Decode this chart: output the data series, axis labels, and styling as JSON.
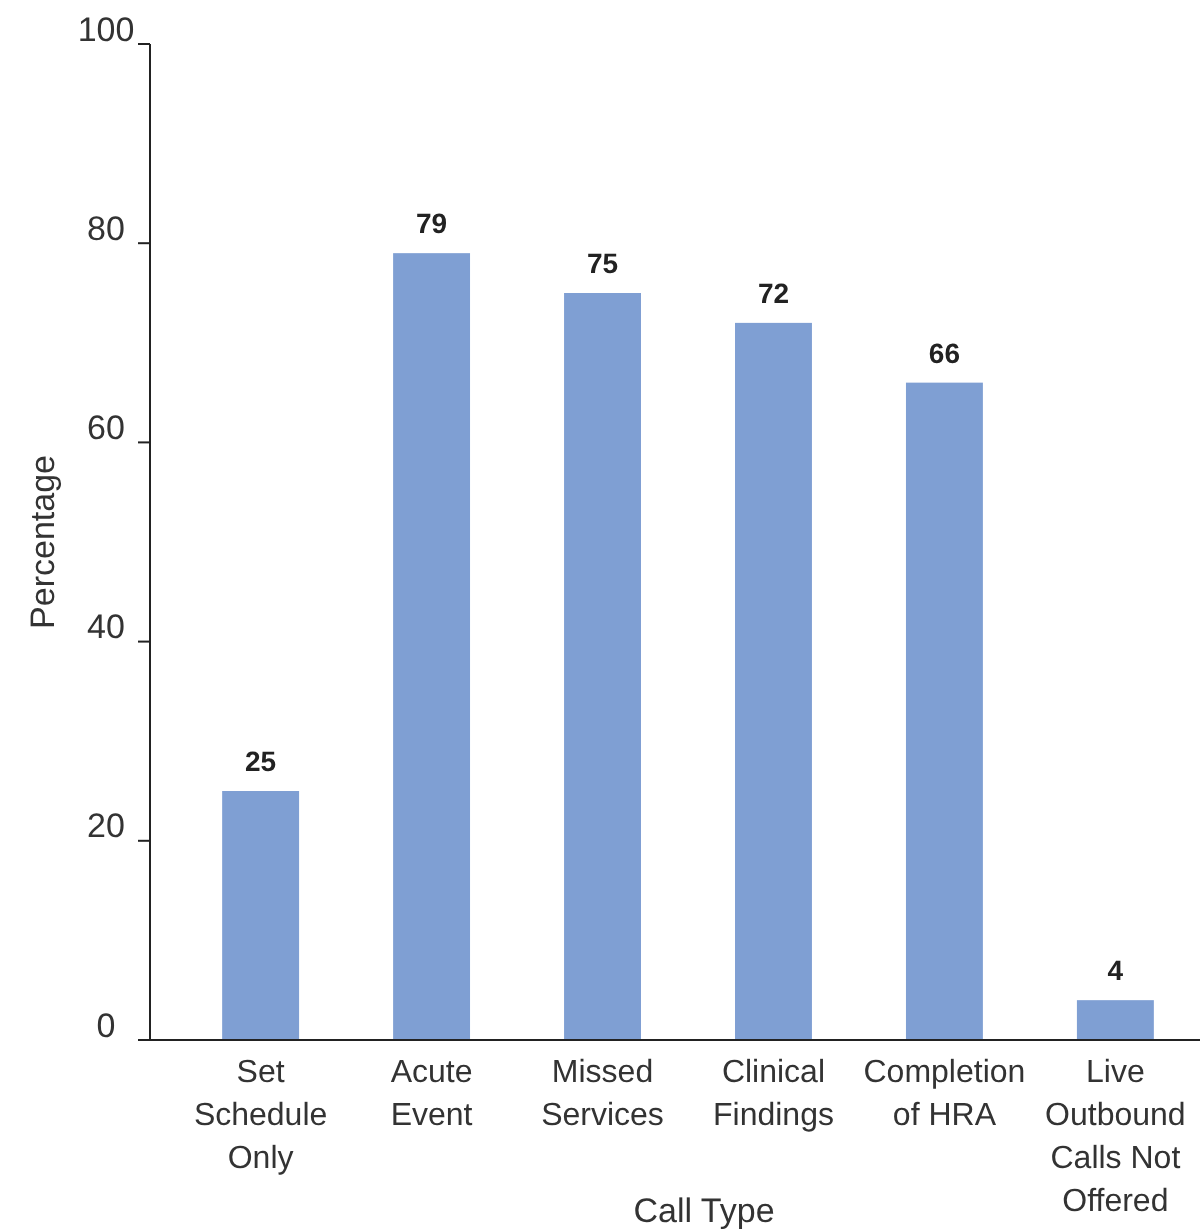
{
  "chart_data": {
    "type": "bar",
    "xlabel": "Call Type",
    "ylabel": "Percentage",
    "categories": [
      "Set Schedule Only",
      "Acute Event",
      "Missed Services",
      "Clinical Findings",
      "Completion of HRA",
      "Live Outbound Calls Not Offered"
    ],
    "values": [
      25,
      79,
      75,
      72,
      66,
      4
    ],
    "color": "#7f9fd3",
    "ylim": [
      0,
      100
    ],
    "yticks": [
      0,
      20,
      40,
      60,
      80,
      100
    ],
    "grid": false,
    "data_labels": true
  }
}
